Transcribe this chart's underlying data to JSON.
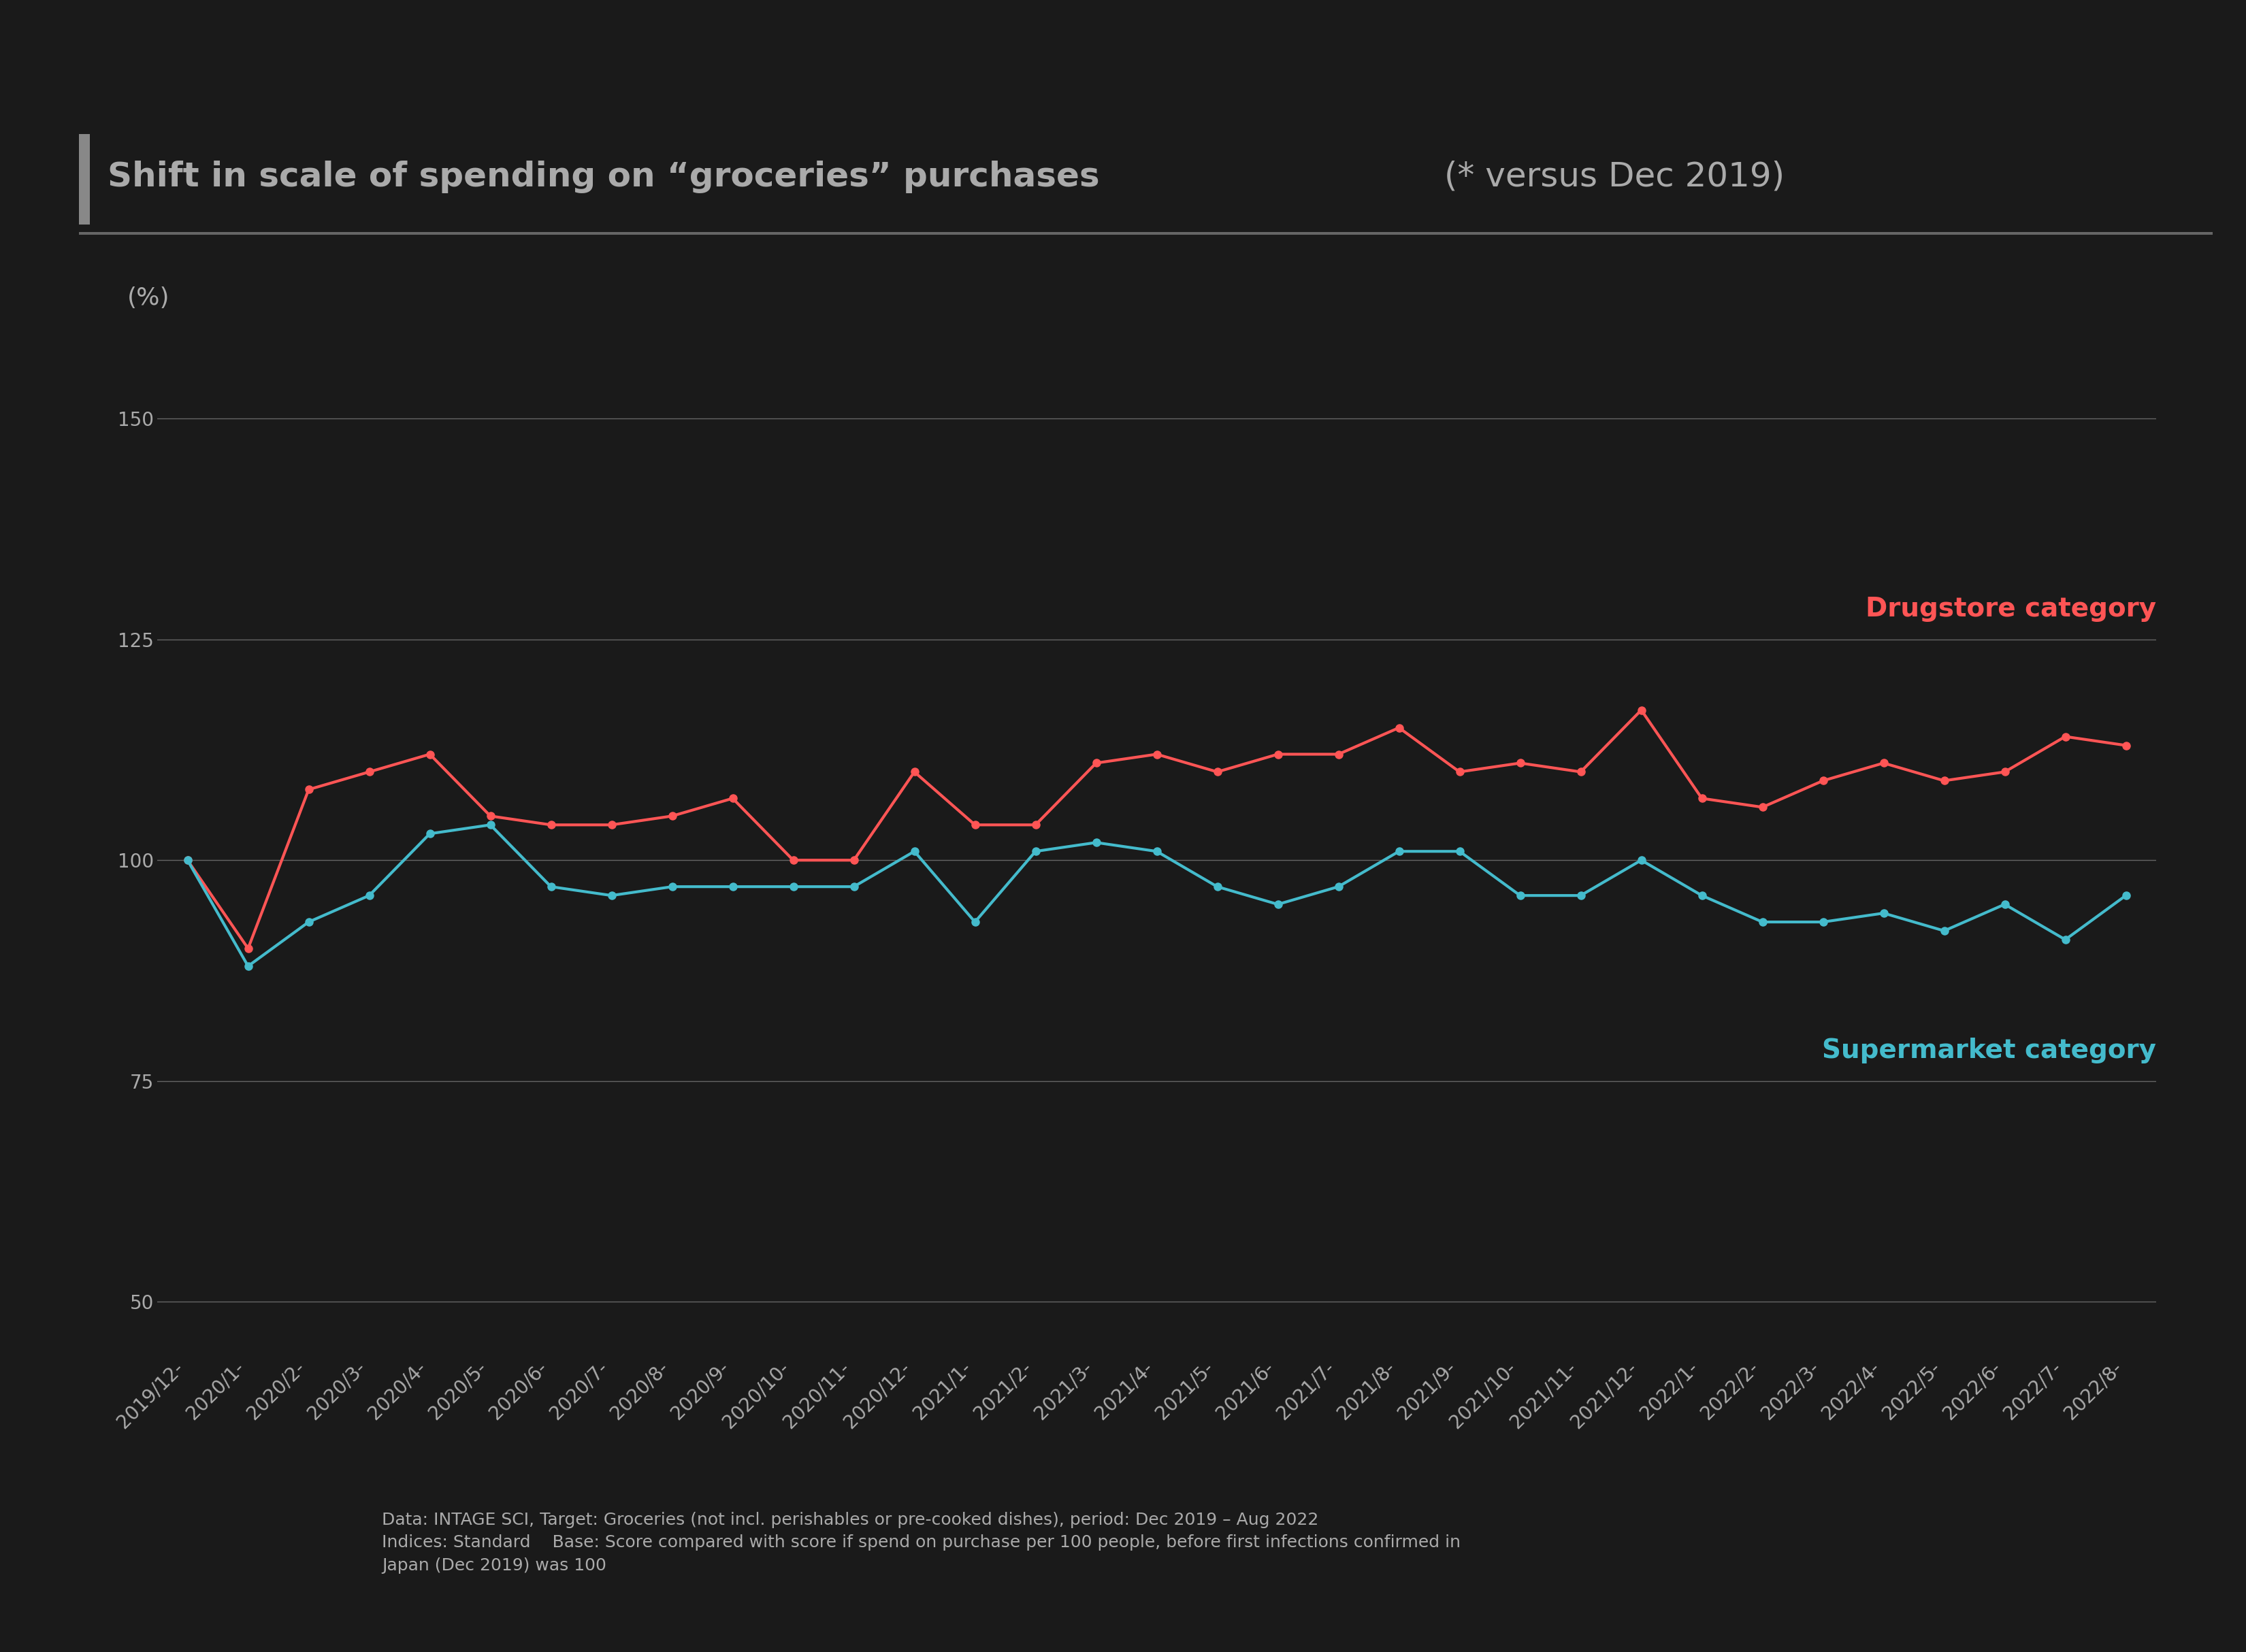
{
  "title_part1": "Shift in scale of spending on “groceries” purchases ",
  "title_part2": "(* versus Dec 2019)",
  "background_color": "#1a1a1a",
  "title_color": "#aaaaaa",
  "title_fontsize": 36,
  "ylabel_text": "(%)",
  "ylabel_fontsize": 26,
  "yticks": [
    50,
    75,
    100,
    125,
    150
  ],
  "ylim": [
    44,
    160
  ],
  "grid_color": "#666666",
  "grid_linewidth": 1.0,
  "drugstore_color": "#ff5555",
  "supermarket_color": "#44bbcc",
  "drugstore_label": "Drugstore category",
  "supermarket_label": "Supermarket category",
  "label_fontsize": 28,
  "line_linewidth": 3.0,
  "marker_size": 8,
  "tick_color": "#aaaaaa",
  "tick_fontsize": 20,
  "accent_bar_color": "#888888",
  "footnote_fontsize": 18,
  "footnote_color": "#aaaaaa",
  "footnote_lines": [
    "Data: INTAGE SCI, Target: Groceries (not incl. perishables or pre-cooked dishes), period: Dec 2019 – Aug 2022",
    "Indices: Standard    Base: Score compared with score if spend on purchase per 100 people, before first infections confirmed in",
    "Japan (Dec 2019) was 100"
  ],
  "x_labels": [
    "2019/12-",
    "2020/1-",
    "2020/2-",
    "2020/3-",
    "2020/4-",
    "2020/5-",
    "2020/6-",
    "2020/7-",
    "2020/8-",
    "2020/9-",
    "2020/10-",
    "2020/11-",
    "2020/12-",
    "2021/1-",
    "2021/2-",
    "2021/3-",
    "2021/4-",
    "2021/5-",
    "2021/6-",
    "2021/7-",
    "2021/8-",
    "2021/9-",
    "2021/10-",
    "2021/11-",
    "2021/12-",
    "2022/1-",
    "2022/2-",
    "2022/3-",
    "2022/4-",
    "2022/5-",
    "2022/6-",
    "2022/7-",
    "2022/8-"
  ],
  "drugstore_values": [
    100,
    90,
    108,
    110,
    112,
    105,
    104,
    104,
    105,
    107,
    100,
    100,
    110,
    104,
    104,
    111,
    112,
    110,
    112,
    112,
    115,
    110,
    111,
    110,
    117,
    107,
    106,
    109,
    111,
    109,
    110,
    114,
    113
  ],
  "supermarket_values": [
    100,
    88,
    93,
    96,
    103,
    104,
    97,
    96,
    97,
    97,
    97,
    97,
    101,
    93,
    101,
    102,
    101,
    97,
    95,
    97,
    101,
    101,
    96,
    96,
    100,
    96,
    93,
    93,
    94,
    92,
    95,
    91,
    96
  ]
}
